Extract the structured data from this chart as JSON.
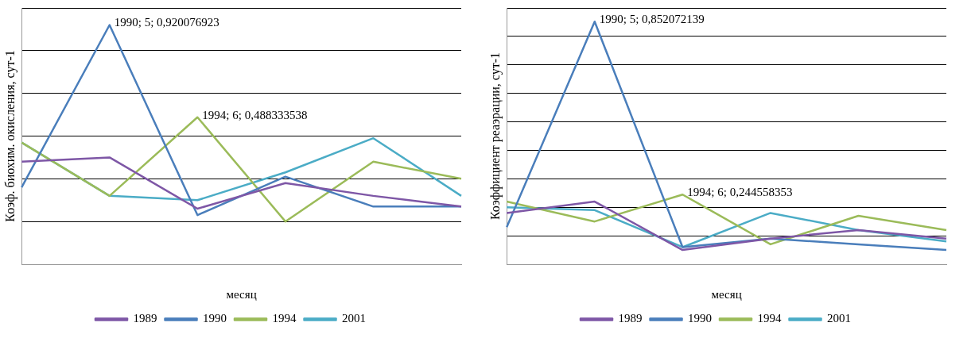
{
  "chart_data": [
    {
      "type": "line",
      "xlabel": "месяц",
      "ylabel": "Коэф. биохим. окисления, сут-1",
      "categories": [
        null,
        null,
        null,
        null,
        null,
        null
      ],
      "ylim": [
        -0.2,
        1.0
      ],
      "yticks": [
        {
          "value": -0.2,
          "label": null
        },
        {
          "value": 0,
          "label": null
        },
        {
          "value": 0.2,
          "label": null
        },
        {
          "value": 0.4,
          "label": null
        },
        {
          "value": 0.6,
          "label": null
        },
        {
          "value": 0.8,
          "label": null
        },
        {
          "value": 1.0,
          "label": null
        }
      ],
      "grid": "y",
      "legend": "bottom",
      "tick_labels": false,
      "line_style": "solid",
      "series": [
        {
          "name": "1989",
          "color": "#7e57a6",
          "values": [
            0.28,
            0.3,
            0.06,
            0.18,
            0.12,
            0.07
          ]
        },
        {
          "name": "1990",
          "color": "#4a7ebb",
          "values": [
            0.16,
            0.920076923,
            0.03,
            0.21,
            0.07,
            0.07
          ],
          "value_labels": [
            null,
            "1990; 5; 0,920076923",
            null,
            null,
            null,
            null
          ]
        },
        {
          "name": "1994",
          "color": "#9bbb59",
          "values": [
            0.37,
            0.12,
            0.488333538,
            0.0,
            0.28,
            0.2
          ],
          "value_labels": [
            null,
            null,
            "1994; 6; 0,488333538",
            null,
            null,
            null
          ]
        },
        {
          "name": "2001",
          "color": "#4bacc6",
          "values": [
            0.37,
            0.12,
            0.1,
            0.23,
            0.39,
            0.12
          ]
        }
      ]
    },
    {
      "type": "line",
      "xlabel": "месяц",
      "ylabel": "Коэффициент реаэрации, сут-1",
      "categories": [
        null,
        null,
        null,
        null,
        null,
        null
      ],
      "ylim": [
        0,
        0.9
      ],
      "yticks": [
        {
          "value": 0,
          "label": null
        },
        {
          "value": 0.1,
          "label": null
        },
        {
          "value": 0.2,
          "label": null
        },
        {
          "value": 0.3,
          "label": null
        },
        {
          "value": 0.4,
          "label": null
        },
        {
          "value": 0.5,
          "label": null
        },
        {
          "value": 0.6,
          "label": null
        },
        {
          "value": 0.7,
          "label": null
        },
        {
          "value": 0.8,
          "label": null
        },
        {
          "value": 0.9,
          "label": null
        }
      ],
      "grid": "y",
      "legend": "bottom",
      "tick_labels": false,
      "line_style": "solid",
      "series": [
        {
          "name": "1989",
          "color": "#7e57a6",
          "values": [
            0.18,
            0.22,
            0.05,
            0.09,
            0.12,
            0.09
          ]
        },
        {
          "name": "1990",
          "color": "#4a7ebb",
          "values": [
            0.13,
            0.852072139,
            0.06,
            0.09,
            0.07,
            0.05
          ],
          "value_labels": [
            null,
            "1990; 5; 0,852072139",
            null,
            null,
            null,
            null
          ]
        },
        {
          "name": "1994",
          "color": "#9bbb59",
          "values": [
            0.22,
            0.15,
            0.244558353,
            0.07,
            0.17,
            0.12
          ],
          "value_labels": [
            null,
            null,
            "1994; 6; 0,244558353",
            null,
            null,
            null
          ]
        },
        {
          "name": "2001",
          "color": "#4bacc6",
          "values": [
            0.2,
            0.19,
            0.06,
            0.18,
            0.12,
            0.08
          ]
        }
      ]
    }
  ]
}
